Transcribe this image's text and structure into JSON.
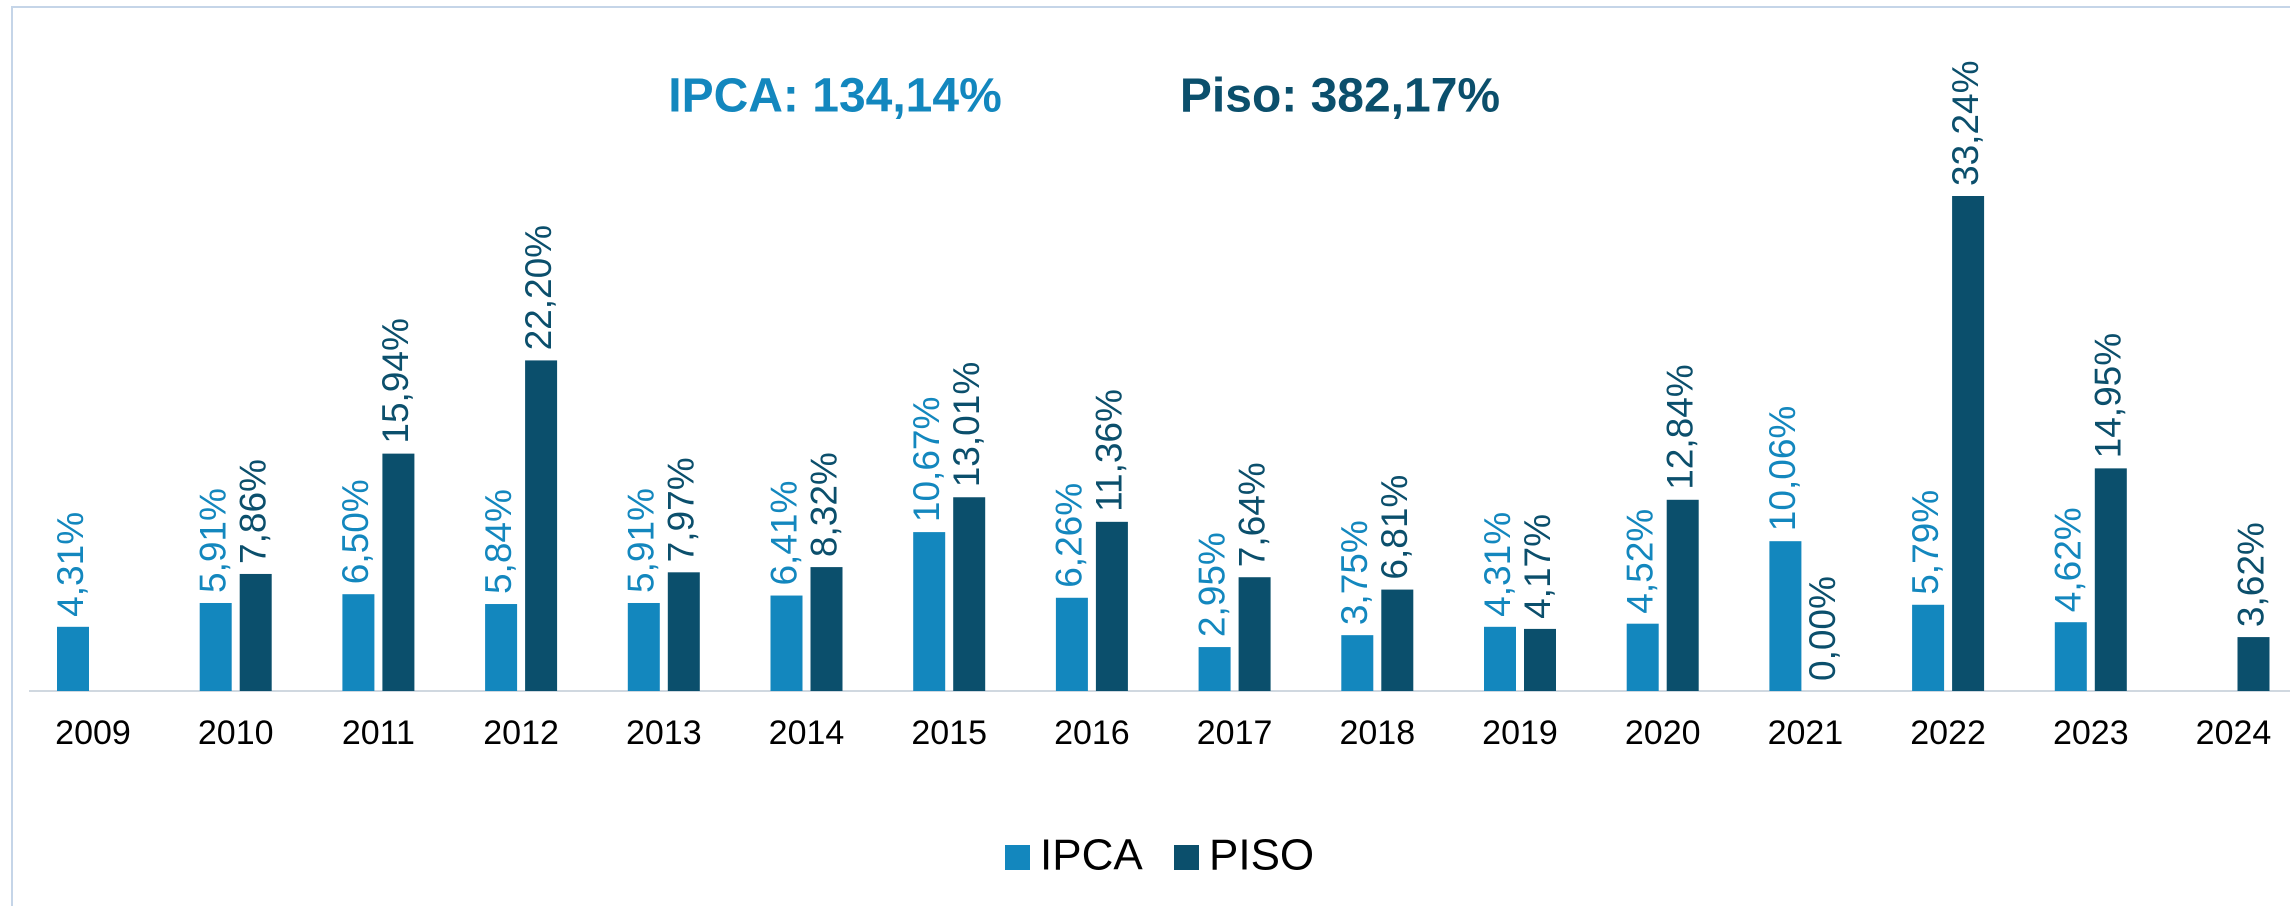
{
  "chart_data": {
    "type": "bar",
    "annotations": [
      "IPCA: 134,14%",
      "Piso: 382,17%"
    ],
    "categories": [
      "2009",
      "2010",
      "2011",
      "2012",
      "2013",
      "2014",
      "2015",
      "2016",
      "2017",
      "2018",
      "2019",
      "2020",
      "2021",
      "2022",
      "2023",
      "2024"
    ],
    "series": [
      {
        "name": "IPCA",
        "color": "#1387be",
        "values": [
          4.31,
          5.91,
          6.5,
          5.84,
          5.91,
          6.41,
          10.67,
          6.26,
          2.95,
          3.75,
          4.31,
          4.52,
          10.06,
          5.79,
          4.62,
          null
        ],
        "value_labels": [
          "4,31%",
          "5,91%",
          "6,50%",
          "5,84%",
          "5,91%",
          "6,41%",
          "10,67%",
          "6,26%",
          "2,95%",
          "3,75%",
          "4,31%",
          "4,52%",
          "10,06%",
          "5,79%",
          "4,62%",
          null
        ]
      },
      {
        "name": "PISO",
        "color": "#0b4f6c",
        "values": [
          null,
          7.86,
          15.94,
          22.2,
          7.97,
          8.32,
          13.01,
          11.36,
          7.64,
          6.81,
          4.17,
          12.84,
          0.0,
          33.24,
          14.95,
          3.62
        ],
        "value_labels": [
          null,
          "7,86%",
          "15,94%",
          "22,20%",
          "7,97%",
          "8,32%",
          "13,01%",
          "11,36%",
          "7,64%",
          "6,81%",
          "4,17%",
          "12,84%",
          "0,00%",
          "33,24%",
          "14,95%",
          "3,62%"
        ]
      }
    ]
  }
}
